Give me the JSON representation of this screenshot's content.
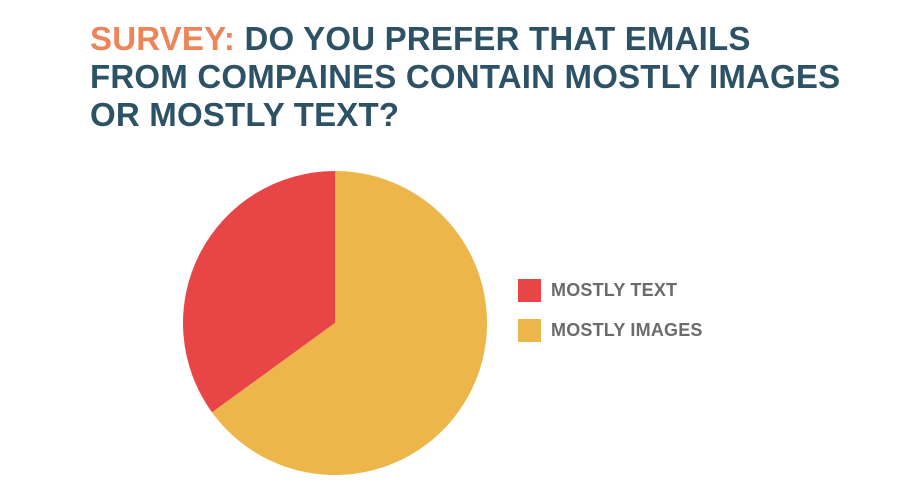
{
  "chart_data": {
    "type": "pie",
    "title_prefix": "SURVEY:",
    "title": "DO YOU PREFER THAT EMAILS FROM COMPAINES CONTAIN MOSTLY IMAGES OR MOSTLY TEXT?",
    "categories": [
      "MOSTLY TEXT",
      "MOSTLY IMAGES"
    ],
    "values": [
      35,
      65
    ],
    "colors": [
      "#e84646",
      "#ecb64b"
    ],
    "start_angle_deg": 0,
    "direction": "counterclockwise",
    "legend_position": "right"
  }
}
